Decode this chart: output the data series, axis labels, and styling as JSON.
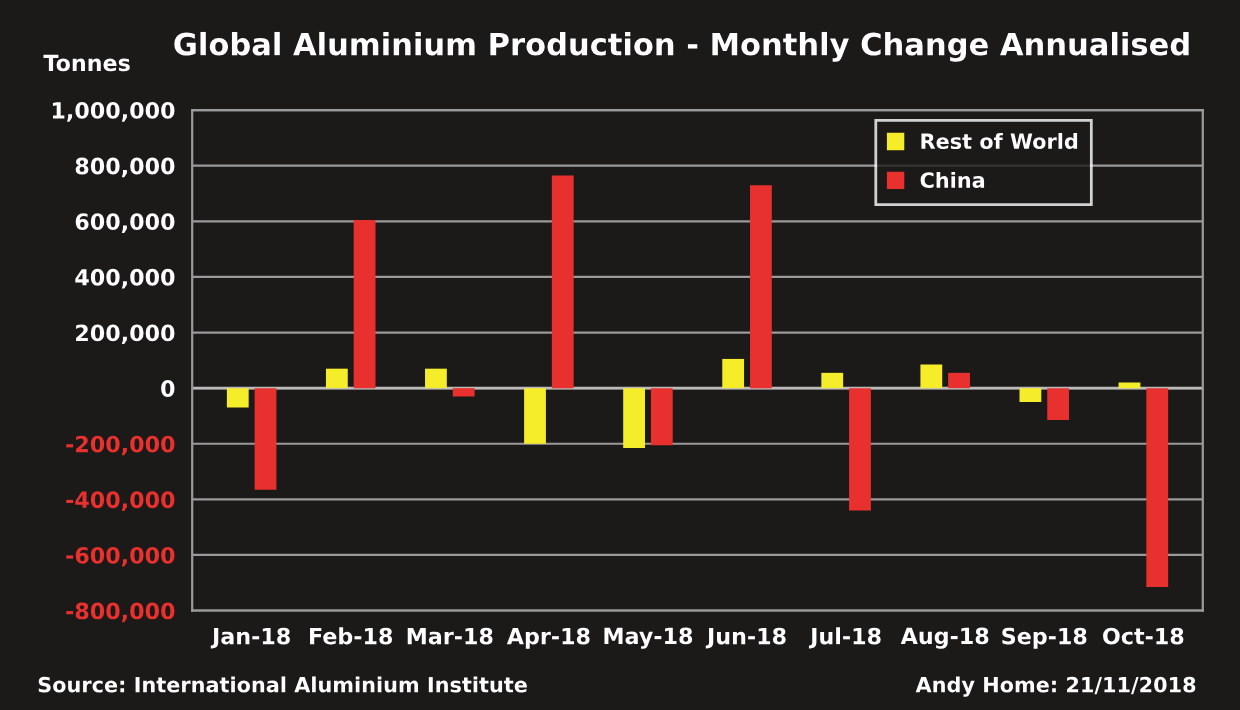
{
  "chart_data": {
    "type": "bar",
    "title": "Global Aluminium Production - Monthly Change Annualised",
    "ylabel": "Tonnes",
    "categories": [
      "Jan-18",
      "Feb-18",
      "Mar-18",
      "Apr-18",
      "May-18",
      "Jun-18",
      "Jul-18",
      "Aug-18",
      "Sep-18",
      "Oct-18"
    ],
    "series": [
      {
        "name": "Rest of World",
        "color": "#f5ec2a",
        "values": [
          -70000,
          70000,
          70000,
          -200000,
          -215000,
          105000,
          55000,
          85000,
          -50000,
          20000
        ]
      },
      {
        "name": "China",
        "color": "#e8312e",
        "values": [
          -365000,
          605000,
          -30000,
          765000,
          -205000,
          730000,
          -440000,
          55000,
          -115000,
          -715000
        ]
      }
    ],
    "ylim": [
      -800000,
      1000000
    ],
    "yticks": [
      {
        "value": -800000,
        "label": "-800,000"
      },
      {
        "value": -600000,
        "label": "-600,000"
      },
      {
        "value": -400000,
        "label": "-400,000"
      },
      {
        "value": -200000,
        "label": "-200,000"
      },
      {
        "value": 0,
        "label": "0"
      },
      {
        "value": 200000,
        "label": "200,000"
      },
      {
        "value": 400000,
        "label": "400,000"
      },
      {
        "value": 600000,
        "label": "600,000"
      },
      {
        "value": 800000,
        "label": "800,000"
      },
      {
        "value": 1000000,
        "label": "1,000,000"
      }
    ],
    "grid": "y",
    "legend": "top right",
    "annotations": [
      "Source: International Aluminium Institute",
      "Andy Home: 21/11/2018"
    ]
  }
}
